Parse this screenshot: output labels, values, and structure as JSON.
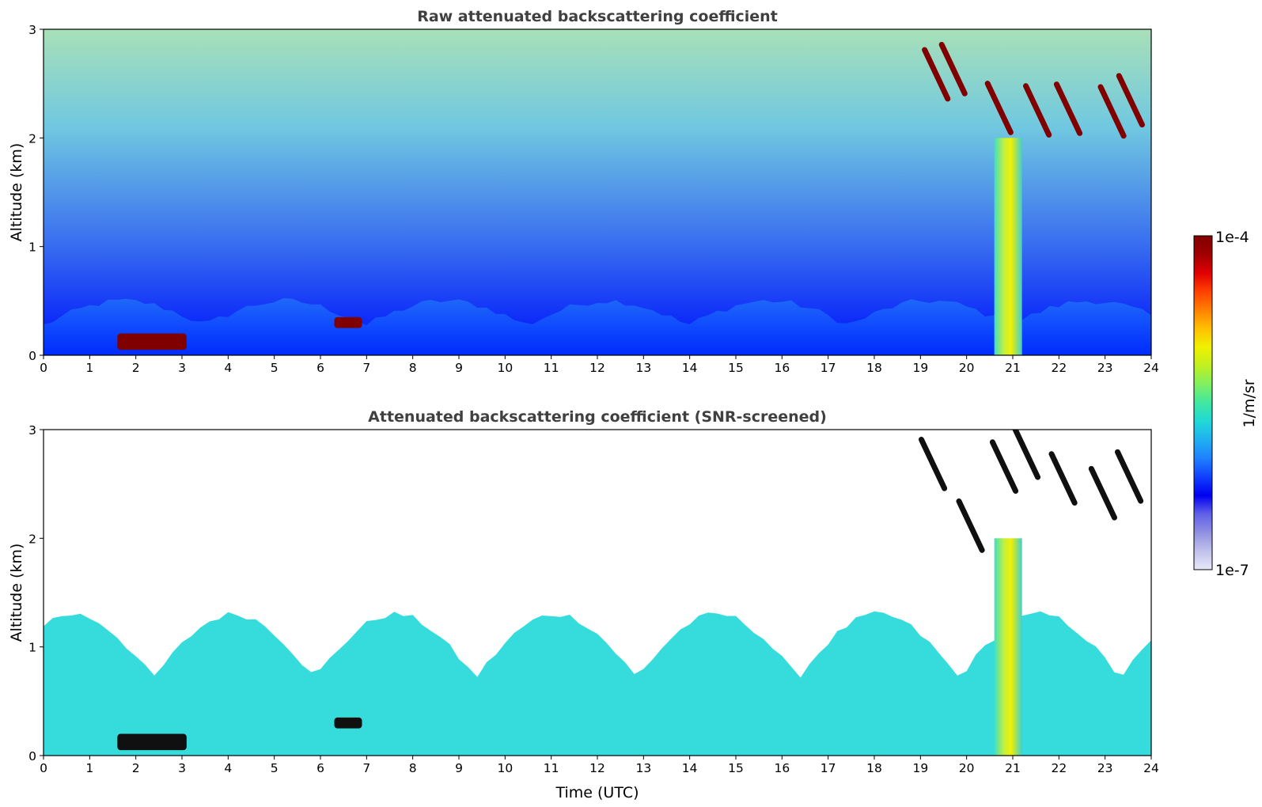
{
  "chart_data": [
    {
      "type": "heatmap",
      "title": "Raw attenuated backscattering coefficient",
      "xlabel": "",
      "ylabel": "Altitude (km)",
      "xlim": [
        0,
        24
      ],
      "ylim": [
        0,
        3
      ],
      "x_ticks": [
        0,
        1,
        2,
        3,
        4,
        5,
        6,
        7,
        8,
        9,
        10,
        11,
        12,
        13,
        14,
        15,
        16,
        17,
        18,
        19,
        20,
        21,
        22,
        23,
        24
      ],
      "y_ticks": [
        0,
        1,
        2,
        3
      ],
      "color_scale": "log",
      "features": [
        {
          "name": "boundary layer",
          "x_range": [
            0,
            24
          ],
          "y_range": [
            0,
            0.5
          ],
          "value": "2e-6"
        },
        {
          "name": "low cloud",
          "x_range": [
            1.6,
            3.1
          ],
          "y_range": [
            0.05,
            0.2
          ],
          "value": "1e-4"
        },
        {
          "name": "low cloud",
          "x_range": [
            6.3,
            6.9
          ],
          "y_range": [
            0.25,
            0.35
          ],
          "value": "1e-4"
        },
        {
          "name": "precipitation",
          "x_range": [
            20.6,
            21.2
          ],
          "y_range": [
            0,
            2.0
          ],
          "value": "3e-5"
        },
        {
          "name": "cloud",
          "x_range": [
            18.7,
            24
          ],
          "y_range": [
            1.7,
            3
          ],
          "value": "1e-4"
        }
      ]
    },
    {
      "type": "heatmap",
      "title": "Attenuated backscattering coefficient (SNR-screened)",
      "xlabel": "Time (UTC)",
      "ylabel": "Altitude (km)",
      "xlim": [
        0,
        24
      ],
      "ylim": [
        0,
        3
      ],
      "x_ticks": [
        0,
        1,
        2,
        3,
        4,
        5,
        6,
        7,
        8,
        9,
        10,
        11,
        12,
        13,
        14,
        15,
        16,
        17,
        18,
        19,
        20,
        21,
        22,
        23,
        24
      ],
      "y_ticks": [
        0,
        1,
        2,
        3
      ],
      "color_scale": "log",
      "features": [
        {
          "name": "boundary layer",
          "x_range": [
            0,
            24
          ],
          "y_range": [
            0,
            1.3
          ],
          "value": "2e-6"
        },
        {
          "name": "low cloud",
          "x_range": [
            1.6,
            3.1
          ],
          "y_range": [
            0.05,
            0.2
          ],
          "value": "1e-4"
        },
        {
          "name": "low cloud",
          "x_range": [
            6.3,
            6.9
          ],
          "y_range": [
            0.25,
            0.35
          ],
          "value": "1e-4"
        },
        {
          "name": "precipitation",
          "x_range": [
            20.6,
            21.2
          ],
          "y_range": [
            0,
            2.0
          ],
          "value": "3e-5"
        },
        {
          "name": "cloud",
          "x_range": [
            18.7,
            24
          ],
          "y_range": [
            1.7,
            3
          ],
          "value": "1e-4"
        }
      ]
    }
  ],
  "colorbar": {
    "label": "1/m/sr",
    "max_label": "1e-4",
    "min_label": "1e-7",
    "colors": [
      "#e8e8f8",
      "#c0c0ec",
      "#9090e0",
      "#6060e8",
      "#0000f0",
      "#1040ff",
      "#2080ff",
      "#20b0f0",
      "#20d8d8",
      "#40e8a0",
      "#80f060",
      "#c0f020",
      "#f0f000",
      "#ffc000",
      "#ff8000",
      "#ff4000",
      "#e00000",
      "#a00000",
      "#800000"
    ]
  }
}
